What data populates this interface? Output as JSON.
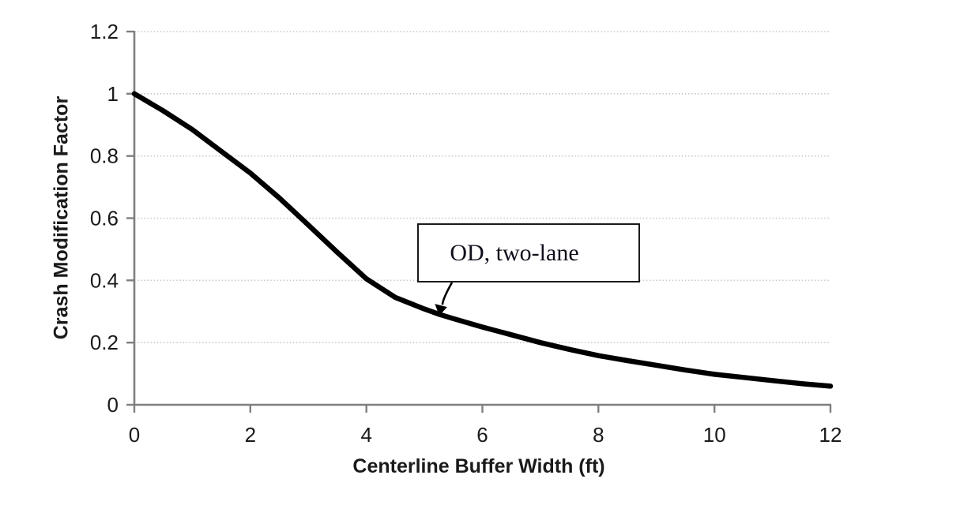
{
  "figure": {
    "background": "#ffffff"
  },
  "chart_data": {
    "type": "line",
    "title": "",
    "xlabel": "Centerline Buffer Width (ft)",
    "ylabel": "Crash Modification Factor",
    "xlim": [
      0,
      12
    ],
    "ylim": [
      0,
      1.2
    ],
    "xticks": [
      0,
      2,
      4,
      6,
      8,
      10,
      12
    ],
    "xtick_labels": [
      "0",
      "2",
      "4",
      "6",
      "8",
      "10",
      "12"
    ],
    "yticks": [
      0,
      0.2,
      0.4,
      0.6,
      0.8,
      1,
      1.2
    ],
    "ytick_labels": [
      "0",
      "0.2",
      "0.4",
      "0.6",
      "0.8",
      "1",
      "1.2"
    ],
    "grid": "horizontal dotted gridlines at each y tick",
    "legend_position": "none",
    "series": [
      {
        "name": "OD, two-lane",
        "points": [
          [
            0,
            1.0
          ],
          [
            0.5,
            0.945
          ],
          [
            1,
            0.885
          ],
          [
            1.5,
            0.815
          ],
          [
            2,
            0.745
          ],
          [
            2.5,
            0.665
          ],
          [
            3,
            0.578
          ],
          [
            3.5,
            0.49
          ],
          [
            4,
            0.405
          ],
          [
            4.5,
            0.345
          ],
          [
            5,
            0.308
          ],
          [
            5.27,
            0.29
          ],
          [
            5.5,
            0.277
          ],
          [
            6,
            0.25
          ],
          [
            6.5,
            0.225
          ],
          [
            7,
            0.2
          ],
          [
            7.5,
            0.178
          ],
          [
            8,
            0.158
          ],
          [
            8.5,
            0.142
          ],
          [
            9,
            0.127
          ],
          [
            9.5,
            0.112
          ],
          [
            10,
            0.098
          ],
          [
            10.5,
            0.088
          ],
          [
            11,
            0.078
          ],
          [
            11.5,
            0.068
          ],
          [
            12,
            0.06
          ]
        ]
      }
    ],
    "annotation": {
      "text": "OD, two-lane",
      "arrow_target": {
        "x": 5.27,
        "y": 0.289
      }
    },
    "colors": {
      "curve": "#000000",
      "axis": "#7f7f7f",
      "gridline": "#c8c8c8",
      "tick_text": "#1a1a1a",
      "annotation_border": "#1a1a1a",
      "annotation_text": "#10101c",
      "arrow": "#000000"
    }
  }
}
